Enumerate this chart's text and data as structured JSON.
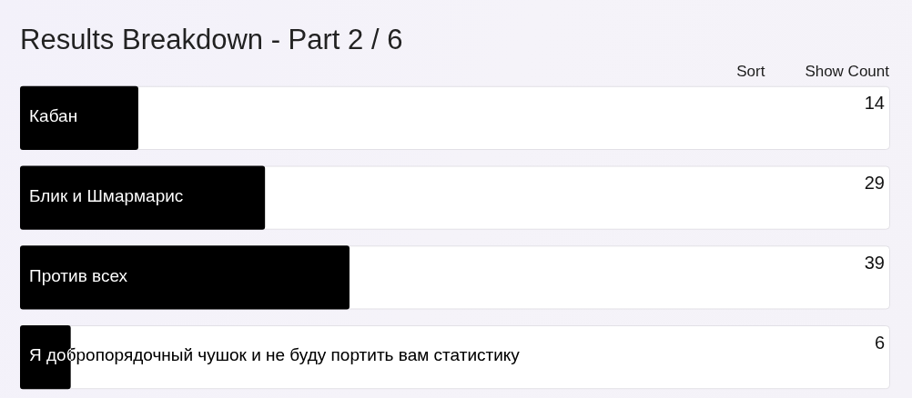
{
  "chart_data": {
    "type": "bar",
    "orientation": "horizontal",
    "title": "Results Breakdown - Part 2 / 6",
    "categories": [
      "Кабан",
      "Блик и Шмармарис",
      "Против всех",
      "Я добропорядочный чушок и не буду портить вам статистику"
    ],
    "values": [
      14,
      29,
      39,
      6
    ],
    "color": "#000000",
    "xlim": [
      0,
      103
    ],
    "data_labels": true,
    "tick_labels": "y",
    "legend": false,
    "annotations": [
      "Sort",
      "Show Count"
    ]
  }
}
